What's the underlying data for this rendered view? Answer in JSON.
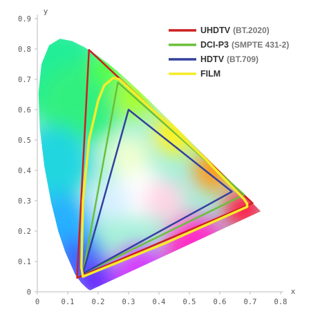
{
  "chart_data": {
    "type": "line",
    "title": "",
    "xlabel": "x",
    "ylabel": "y",
    "xlim": [
      0,
      0.8
    ],
    "ylim": [
      0,
      0.9
    ],
    "x_ticks": [
      "0",
      "0.1",
      "0.2",
      "0.3",
      "0.4",
      "0.5",
      "0.6",
      "0.7",
      "0.8"
    ],
    "y_ticks": [
      "0",
      "0.1",
      "0.2",
      "0.3",
      "0.4",
      "0.5",
      "0.6",
      "0.7",
      "0.8",
      "0.9"
    ],
    "legend_position": "top-right",
    "background_shape": "CIE 1931 chromaticity diagram (spectral locus filled with colour gradient)",
    "spectral_locus": [
      [
        0.1741,
        0.005
      ],
      [
        0.1738,
        0.0049
      ],
      [
        0.169,
        0.0069
      ],
      [
        0.1644,
        0.0109
      ],
      [
        0.1566,
        0.0177
      ],
      [
        0.144,
        0.0297
      ],
      [
        0.1241,
        0.0578
      ],
      [
        0.0913,
        0.1327
      ],
      [
        0.0687,
        0.2007
      ],
      [
        0.0454,
        0.295
      ],
      [
        0.0235,
        0.4127
      ],
      [
        0.0082,
        0.5384
      ],
      [
        0.0039,
        0.6548
      ],
      [
        0.0139,
        0.7502
      ],
      [
        0.0389,
        0.812
      ],
      [
        0.0743,
        0.8338
      ],
      [
        0.1142,
        0.8262
      ],
      [
        0.1547,
        0.8059
      ],
      [
        0.1929,
        0.7816
      ],
      [
        0.2296,
        0.7543
      ],
      [
        0.2658,
        0.7243
      ],
      [
        0.3016,
        0.6923
      ],
      [
        0.3373,
        0.6589
      ],
      [
        0.3731,
        0.6245
      ],
      [
        0.4087,
        0.5896
      ],
      [
        0.4441,
        0.5547
      ],
      [
        0.4788,
        0.5202
      ],
      [
        0.5125,
        0.4866
      ],
      [
        0.5448,
        0.4544
      ],
      [
        0.5752,
        0.4242
      ],
      [
        0.6029,
        0.3965
      ],
      [
        0.627,
        0.3725
      ],
      [
        0.6482,
        0.3514
      ],
      [
        0.6658,
        0.334
      ],
      [
        0.6801,
        0.3197
      ],
      [
        0.6915,
        0.3083
      ],
      [
        0.7006,
        0.2993
      ],
      [
        0.7079,
        0.292
      ],
      [
        0.714,
        0.2859
      ],
      [
        0.719,
        0.2809
      ],
      [
        0.723,
        0.277
      ],
      [
        0.726,
        0.274
      ],
      [
        0.7283,
        0.2717
      ],
      [
        0.73,
        0.27
      ],
      [
        0.7347,
        0.2653
      ]
    ],
    "series": [
      {
        "name": "UHDTV",
        "detail": "(BT.2020)",
        "color": "#cc1f1f",
        "points": [
          [
            0.708,
            0.292
          ],
          [
            0.17,
            0.797
          ],
          [
            0.131,
            0.046
          ]
        ]
      },
      {
        "name": "DCI-P3",
        "detail": "(SMPTE 431-2)",
        "color": "#6bbf3a",
        "points": [
          [
            0.68,
            0.32
          ],
          [
            0.265,
            0.69
          ],
          [
            0.15,
            0.06
          ]
        ]
      },
      {
        "name": "HDTV",
        "detail": "(BT.709)",
        "color": "#33409e",
        "points": [
          [
            0.64,
            0.33
          ],
          [
            0.3,
            0.6
          ],
          [
            0.15,
            0.06
          ]
        ]
      },
      {
        "name": "FILM",
        "detail": "",
        "color": "#f5ec2a",
        "points": [
          [
            0.68,
            0.305
          ],
          [
            0.69,
            0.29
          ],
          [
            0.69,
            0.28
          ],
          [
            0.6,
            0.24
          ],
          [
            0.42,
            0.16
          ],
          [
            0.15,
            0.05
          ],
          [
            0.145,
            0.08
          ],
          [
            0.15,
            0.3
          ],
          [
            0.17,
            0.5
          ],
          [
            0.2,
            0.63
          ],
          [
            0.22,
            0.68
          ],
          [
            0.25,
            0.705
          ],
          [
            0.27,
            0.7
          ],
          [
            0.4,
            0.58
          ],
          [
            0.55,
            0.44
          ],
          [
            0.68,
            0.305
          ]
        ]
      }
    ]
  },
  "colors": {
    "axis": "#bbbbbb",
    "tick_text": "#555555"
  }
}
